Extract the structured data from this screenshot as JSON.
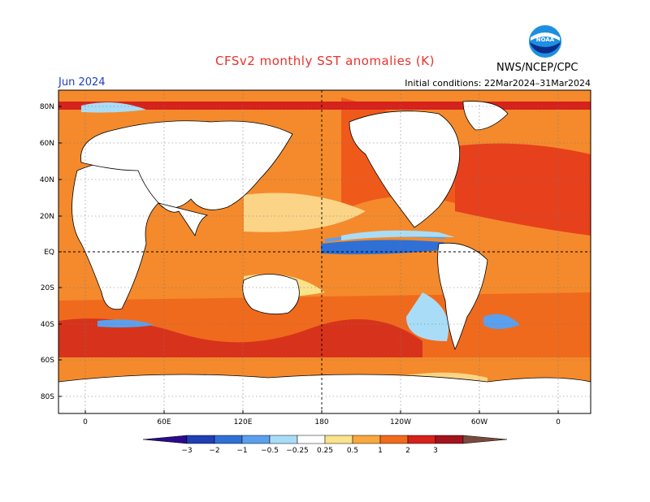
{
  "title": "CFSv2 monthly SST anomalies (K)",
  "period": "Jun 2024",
  "agency": "NWS/NCEP/CPC",
  "initial_conditions": "Initial conditions: 22Mar2024–31Mar2024",
  "logo_text": "NOAA",
  "lat_labels": [
    "80N",
    "60N",
    "40N",
    "20N",
    "EQ",
    "20S",
    "40S",
    "60S",
    "80S"
  ],
  "lon_labels": [
    "0",
    "60E",
    "120E",
    "180",
    "120W",
    "60W",
    "0"
  ],
  "colorbar": {
    "levels": [
      "−3",
      "−2",
      "−1",
      "−0.5",
      "−0.25",
      "0.25",
      "0.5",
      "1",
      "2",
      "3"
    ],
    "colors": [
      "#2a0b8c",
      "#1f3fb5",
      "#2f70d6",
      "#5aa0ee",
      "#a9ddf7",
      "#ffffff",
      "#fbe28c",
      "#f9a73e",
      "#f26a1b",
      "#d7211b",
      "#a3131b",
      "#7a4a3f"
    ]
  }
}
